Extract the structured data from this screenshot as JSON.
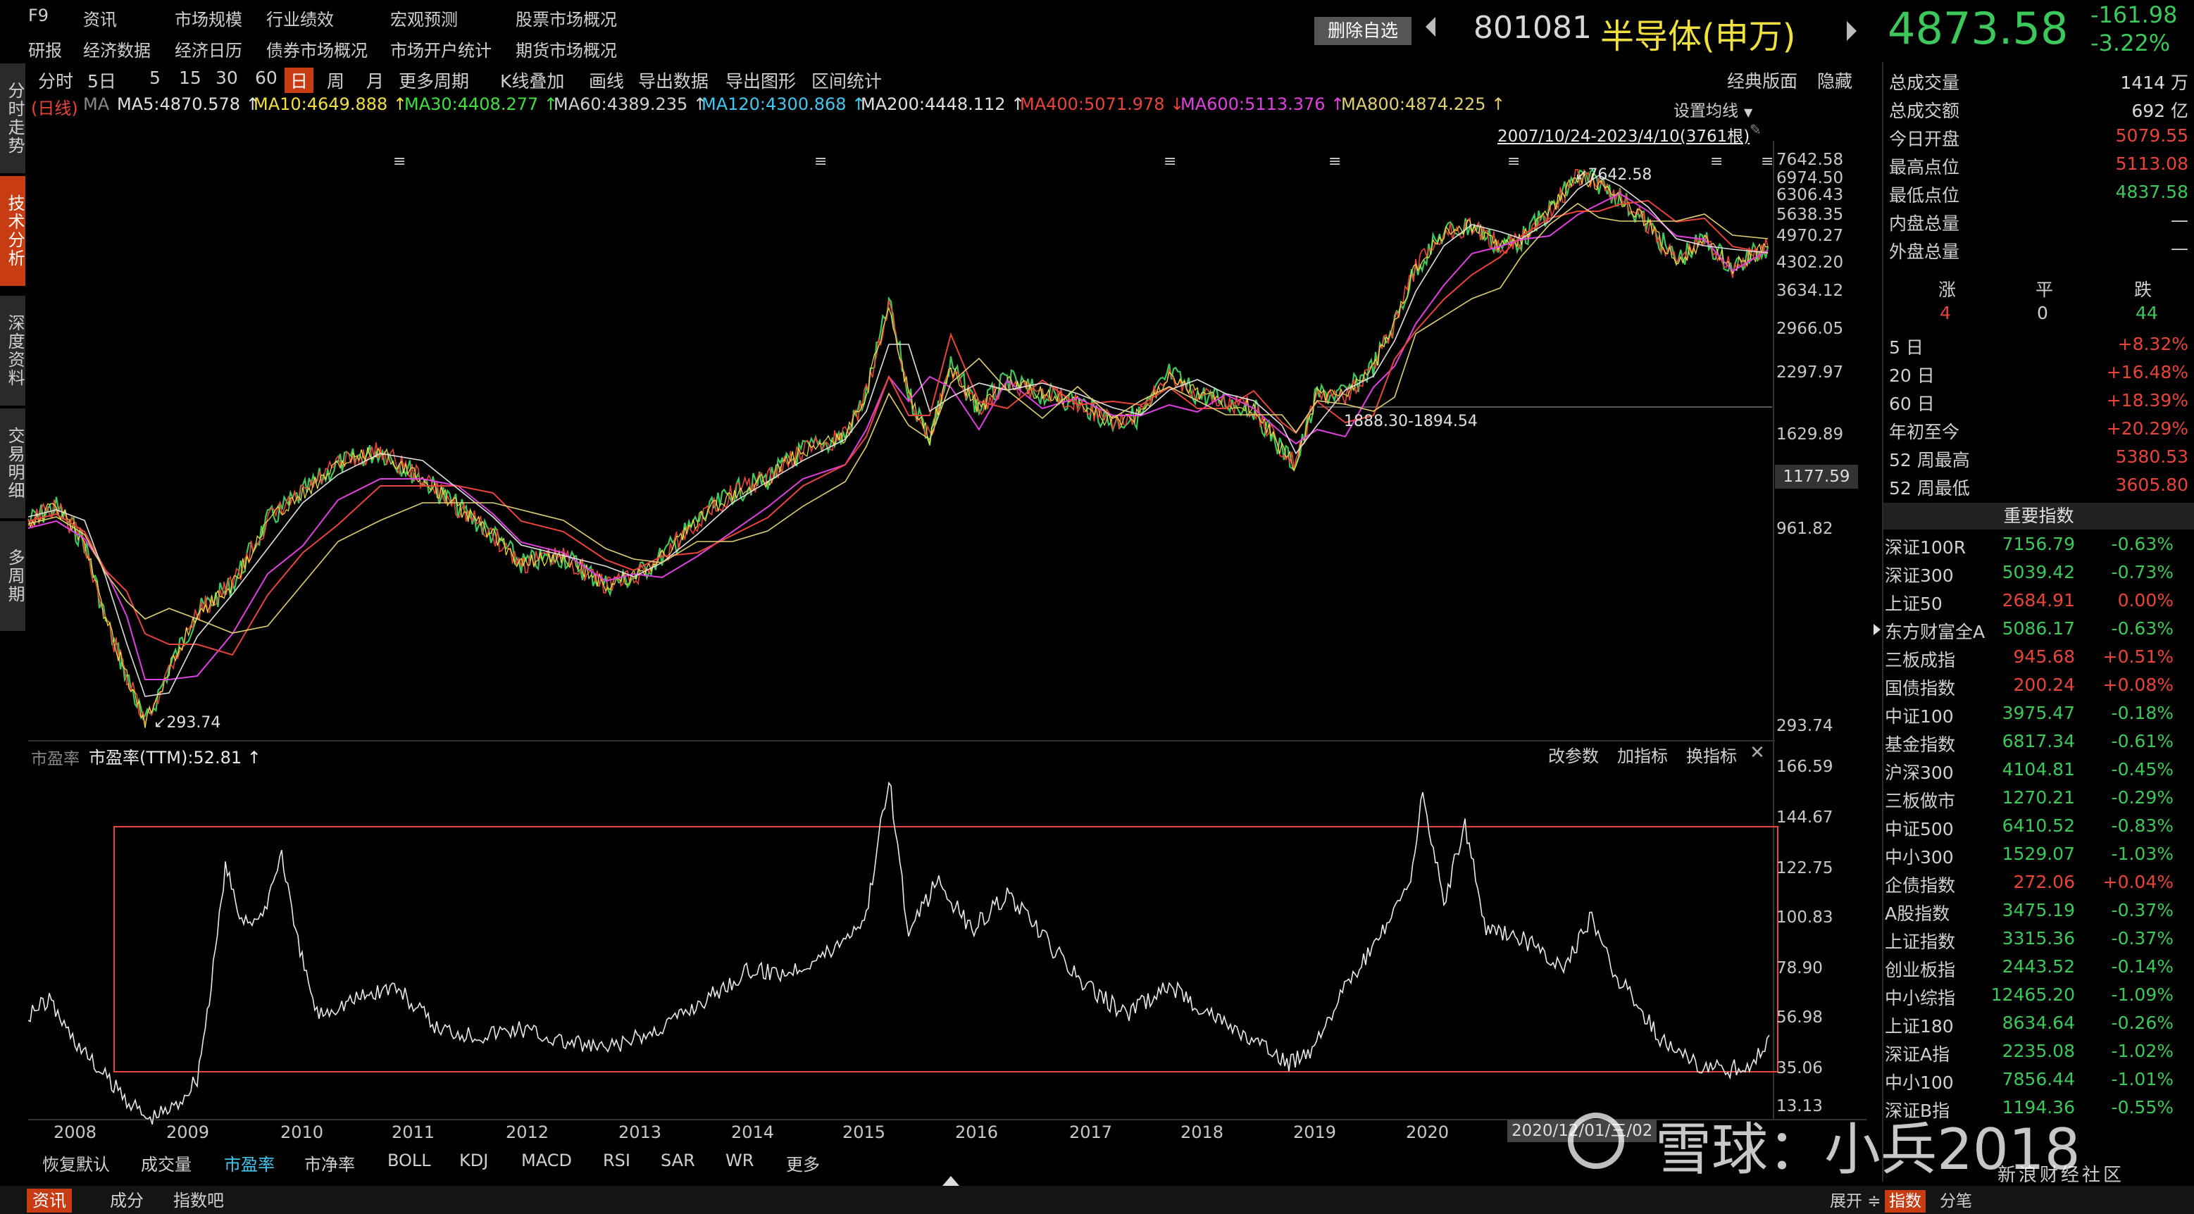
{
  "menu": {
    "row1": [
      "F9",
      "资讯",
      "市场规模",
      "行业绩效",
      "宏观预测",
      "股票市场概况"
    ],
    "row2": [
      "研报",
      "经济数据",
      "经济日历",
      "债券市场概况",
      "市场开户统计",
      "期货市场概况"
    ]
  },
  "header": {
    "del_btn": "删除自选",
    "code": "801081",
    "name": "半导体(申万)",
    "price": "4873.58",
    "change": "-161.98",
    "change_pct": "-3.22%",
    "colors": {
      "down": "#3cc85a",
      "up": "#e8443a",
      "accent": "#c83c14"
    }
  },
  "side_tabs": [
    {
      "label": "分时走势",
      "active": false
    },
    {
      "label": "技术分析",
      "active": true
    },
    {
      "label": "深度资料",
      "active": false
    },
    {
      "label": "交易明细",
      "active": false
    },
    {
      "label": "多周期",
      "active": false
    }
  ],
  "toolbar": {
    "items": [
      "分时",
      "5日",
      "5",
      "15",
      "30",
      "60",
      "日",
      "周",
      "月",
      "更多周期",
      "K线叠加",
      "画线",
      "导出数据",
      "导出图形",
      "区间统计"
    ],
    "right": [
      "经典版面",
      "隐藏"
    ],
    "active": "日"
  },
  "ma_line": {
    "prefix": "(日线)",
    "ma": "MA",
    "items": [
      {
        "t": "MA5:4870.578 ↑",
        "c": "#e0e0e0"
      },
      {
        "t": "MA10:4649.888 ↑",
        "c": "#f0e040"
      },
      {
        "t": "MA30:4408.277 ↑",
        "c": "#40e040"
      },
      {
        "t": "MA60:4389.235 ↑",
        "c": "#d0d0d0"
      },
      {
        "t": "MA120:4300.868 ↑",
        "c": "#40c8f0"
      },
      {
        "t": "MA200:4448.112 ↑",
        "c": "#e0e0e0"
      },
      {
        "t": "MA400:5071.978 ↓",
        "c": "#e8443a"
      },
      {
        "t": "MA600:5113.376 ↑",
        "c": "#e040e0"
      },
      {
        "t": "MA800:4874.225 ↑",
        "c": "#e0d070"
      }
    ],
    "settings": "设置均线",
    "range": "2007/10/24-2023/4/10(3761根)"
  },
  "price_chart": {
    "y_labels": [
      "7642.58",
      "6974.50",
      "6306.43",
      "5638.35",
      "4970.27",
      "4302.20",
      "3634.12",
      "2966.05",
      "2297.97",
      "1629.89",
      "961.82",
      "293.74"
    ],
    "high_label": "7642.58",
    "low_label": "293.74",
    "support_label": "1888.30-1894.54",
    "cursor_label": "1177.59"
  },
  "pe_panel": {
    "title": "市盈率",
    "indicator": "市盈率(TTM):52.81 ↑",
    "buttons": [
      "改参数",
      "加指标",
      "换指标"
    ],
    "y_labels": [
      "166.59",
      "144.67",
      "122.75",
      "100.83",
      "78.90",
      "56.98",
      "35.06",
      "13.13"
    ]
  },
  "x_years": [
    "2008",
    "2009",
    "2010",
    "2011",
    "2012",
    "2013",
    "2014",
    "2015",
    "2016",
    "2017",
    "2018",
    "2019",
    "2020"
  ],
  "date_tag": "2020/12/01/三/02",
  "bottom_tabs": [
    "恢复默认",
    "成交量",
    "市盈率",
    "市净率",
    "BOLL",
    "KDJ",
    "MACD",
    "RSI",
    "SAR",
    "WR",
    "更多"
  ],
  "bottom_active": "市盈率",
  "footer_tabs": [
    "资讯",
    "成分",
    "指数吧"
  ],
  "footer_right": [
    "展开 ≑",
    "指数",
    "分笔"
  ],
  "watermark": {
    "text": "雪球：小兵2018",
    "sina": "新浪财经社区"
  },
  "stats": [
    {
      "l": "总成交量",
      "v": "1414 万",
      "c": "wh"
    },
    {
      "l": "总成交额",
      "v": "692 亿",
      "c": "wh"
    },
    {
      "l": "今日开盘",
      "v": "5079.55",
      "c": "up"
    },
    {
      "l": "最高点位",
      "v": "5113.08",
      "c": "up"
    },
    {
      "l": "最低点位",
      "v": "4837.58",
      "c": "dn"
    },
    {
      "l": "内盘总量",
      "v": "—",
      "c": "wh"
    },
    {
      "l": "外盘总量",
      "v": "—",
      "c": "wh"
    }
  ],
  "breadth": {
    "labels": [
      "涨",
      "平",
      "跌"
    ],
    "values": [
      "4",
      "0",
      "44"
    ]
  },
  "period": [
    {
      "l": "5 日",
      "v": "+8.32%"
    },
    {
      "l": "20 日",
      "v": "+16.48%"
    },
    {
      "l": "60 日",
      "v": "+18.39%"
    },
    {
      "l": "年初至今",
      "v": "+20.29%"
    },
    {
      "l": "52 周最高",
      "v": "5380.53"
    },
    {
      "l": "52 周最低",
      "v": "3605.80"
    }
  ],
  "indices_title": "重要指数",
  "indices": [
    {
      "n": "深证100R",
      "p": "7156.79",
      "c": "-0.63%",
      "d": "dn"
    },
    {
      "n": "深证300",
      "p": "5039.42",
      "c": "-0.73%",
      "d": "dn"
    },
    {
      "n": "上证50",
      "p": "2684.91",
      "c": "0.00%",
      "d": "up"
    },
    {
      "n": "东方财富全A",
      "p": "5086.17",
      "c": "-0.63%",
      "d": "dn"
    },
    {
      "n": "三板成指",
      "p": "945.68",
      "c": "+0.51%",
      "d": "up"
    },
    {
      "n": "国债指数",
      "p": "200.24",
      "c": "+0.08%",
      "d": "up"
    },
    {
      "n": "中证100",
      "p": "3975.47",
      "c": "-0.18%",
      "d": "dn"
    },
    {
      "n": "基金指数",
      "p": "6817.34",
      "c": "-0.61%",
      "d": "dn"
    },
    {
      "n": "沪深300",
      "p": "4104.81",
      "c": "-0.45%",
      "d": "dn"
    },
    {
      "n": "三板做市",
      "p": "1270.21",
      "c": "-0.29%",
      "d": "dn"
    },
    {
      "n": "中证500",
      "p": "6410.52",
      "c": "-0.83%",
      "d": "dn"
    },
    {
      "n": "中小300",
      "p": "1529.07",
      "c": "-1.03%",
      "d": "dn"
    },
    {
      "n": "企债指数",
      "p": "272.06",
      "c": "+0.04%",
      "d": "up"
    },
    {
      "n": "A股指数",
      "p": "3475.19",
      "c": "-0.37%",
      "d": "dn"
    },
    {
      "n": "上证指数",
      "p": "3315.36",
      "c": "-0.37%",
      "d": "dn"
    },
    {
      "n": "创业板指",
      "p": "2443.52",
      "c": "-0.14%",
      "d": "dn"
    },
    {
      "n": "中小综指",
      "p": "12465.20",
      "c": "-1.09%",
      "d": "dn"
    },
    {
      "n": "上证180",
      "p": "8634.64",
      "c": "-0.26%",
      "d": "dn"
    },
    {
      "n": "深证A指",
      "p": "2235.08",
      "c": "-1.02%",
      "d": "dn"
    },
    {
      "n": "中小100",
      "p": "7856.44",
      "c": "-1.01%",
      "d": "dn"
    },
    {
      "n": "深证B指",
      "p": "1194.36",
      "c": "-0.55%",
      "d": "dn"
    }
  ]
}
